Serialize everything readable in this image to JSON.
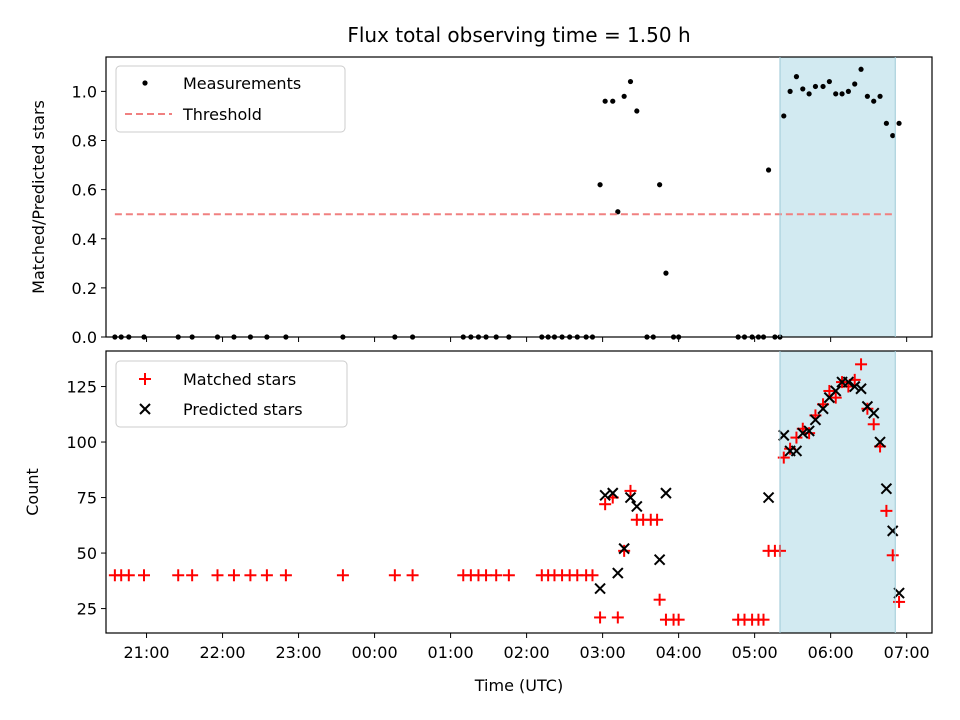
{
  "chart_data": [
    {
      "type": "scatter",
      "title": "Flux total observing time = 1.50 h",
      "xlabel": "",
      "ylabel": "Matched/Predicted stars",
      "xlim": [
        "20:28",
        "07:20"
      ],
      "ylim": [
        0,
        1.14
      ],
      "y_ticks": [
        "0.0",
        "0.2",
        "0.4",
        "0.6",
        "0.8",
        "1.0"
      ],
      "shaded_region": {
        "x_start": "05:20",
        "x_end": "06:51",
        "color": "#add8e6"
      },
      "legend_placement": "top-left",
      "series": [
        {
          "name": "Measurements",
          "marker": "dot",
          "color": "#000000",
          "points": [
            [
              "20:35",
              0
            ],
            [
              "20:40",
              0
            ],
            [
              "20:46",
              0
            ],
            [
              "20:58",
              0
            ],
            [
              "21:25",
              0
            ],
            [
              "21:36",
              0
            ],
            [
              "21:56",
              0
            ],
            [
              "22:09",
              0
            ],
            [
              "22:22",
              0
            ],
            [
              "22:35",
              0
            ],
            [
              "22:50",
              0
            ],
            [
              "23:35",
              0
            ],
            [
              "00:16",
              0
            ],
            [
              "00:30",
              0
            ],
            [
              "01:10",
              0
            ],
            [
              "01:16",
              0
            ],
            [
              "01:22",
              0
            ],
            [
              "01:28",
              0
            ],
            [
              "01:36",
              0
            ],
            [
              "01:46",
              0
            ],
            [
              "02:12",
              0
            ],
            [
              "02:17",
              0
            ],
            [
              "02:22",
              0
            ],
            [
              "02:28",
              0
            ],
            [
              "02:34",
              0
            ],
            [
              "02:40",
              0
            ],
            [
              "02:47",
              0
            ],
            [
              "02:52",
              0
            ],
            [
              "02:58",
              0.62
            ],
            [
              "03:02",
              0.96
            ],
            [
              "03:08",
              0.96
            ],
            [
              "03:12",
              0.51
            ],
            [
              "03:17",
              0.98
            ],
            [
              "03:22",
              1.04
            ],
            [
              "03:27",
              0.92
            ],
            [
              "03:35",
              0
            ],
            [
              "03:40",
              0
            ],
            [
              "03:45",
              0.62
            ],
            [
              "03:50",
              0.26
            ],
            [
              "03:56",
              0
            ],
            [
              "04:00",
              0
            ],
            [
              "04:47",
              0
            ],
            [
              "04:52",
              0
            ],
            [
              "04:58",
              0
            ],
            [
              "05:03",
              0
            ],
            [
              "05:07",
              0
            ],
            [
              "05:11",
              0.68
            ],
            [
              "05:16",
              0
            ],
            [
              "05:20",
              0
            ],
            [
              "05:23",
              0.9
            ],
            [
              "05:28",
              1.0
            ],
            [
              "05:33",
              1.06
            ],
            [
              "05:38",
              1.01
            ],
            [
              "05:43",
              0.99
            ],
            [
              "05:48",
              1.02
            ],
            [
              "05:54",
              1.02
            ],
            [
              "05:59",
              1.04
            ],
            [
              "06:04",
              0.99
            ],
            [
              "06:09",
              0.99
            ],
            [
              "06:14",
              1.0
            ],
            [
              "06:19",
              1.03
            ],
            [
              "06:24",
              1.09
            ],
            [
              "06:29",
              0.98
            ],
            [
              "06:34",
              0.96
            ],
            [
              "06:39",
              0.98
            ],
            [
              "06:44",
              0.87
            ],
            [
              "06:49",
              0.82
            ],
            [
              "06:54",
              0.87
            ]
          ]
        },
        {
          "name": "Threshold",
          "style": "dashed",
          "color": "#f08080",
          "points": [
            [
              "20:35",
              0.5
            ],
            [
              "06:51",
              0.5
            ]
          ]
        }
      ]
    },
    {
      "type": "scatter",
      "title": "",
      "xlabel": "Time (UTC)",
      "ylabel": "Count",
      "xlim": [
        "20:28",
        "07:20"
      ],
      "ylim": [
        14,
        141
      ],
      "y_ticks": [
        "25",
        "50",
        "75",
        "100",
        "125"
      ],
      "x_ticks": [
        "21:00",
        "22:00",
        "23:00",
        "00:00",
        "01:00",
        "02:00",
        "03:00",
        "04:00",
        "05:00",
        "06:00",
        "07:00"
      ],
      "shaded_region": {
        "x_start": "05:20",
        "x_end": "06:51",
        "color": "#add8e6"
      },
      "legend_placement": "top-left",
      "series": [
        {
          "name": "Matched stars",
          "marker": "plus",
          "color": "#ff0000",
          "points": [
            [
              "20:35",
              40
            ],
            [
              "20:40",
              40
            ],
            [
              "20:46",
              40
            ],
            [
              "20:58",
              40
            ],
            [
              "21:25",
              40
            ],
            [
              "21:36",
              40
            ],
            [
              "21:56",
              40
            ],
            [
              "22:09",
              40
            ],
            [
              "22:22",
              40
            ],
            [
              "22:35",
              40
            ],
            [
              "22:50",
              40
            ],
            [
              "23:35",
              40
            ],
            [
              "00:16",
              40
            ],
            [
              "00:30",
              40
            ],
            [
              "01:10",
              40
            ],
            [
              "01:16",
              40
            ],
            [
              "01:22",
              40
            ],
            [
              "01:28",
              40
            ],
            [
              "01:36",
              40
            ],
            [
              "01:46",
              40
            ],
            [
              "02:12",
              40
            ],
            [
              "02:17",
              40
            ],
            [
              "02:22",
              40
            ],
            [
              "02:28",
              40
            ],
            [
              "02:34",
              40
            ],
            [
              "02:40",
              40
            ],
            [
              "02:47",
              40
            ],
            [
              "02:52",
              40
            ],
            [
              "02:58",
              21
            ],
            [
              "03:02",
              72
            ],
            [
              "03:08",
              75
            ],
            [
              "03:12",
              21
            ],
            [
              "03:17",
              51
            ],
            [
              "03:22",
              78
            ],
            [
              "03:27",
              65
            ],
            [
              "03:32",
              65
            ],
            [
              "03:38",
              65
            ],
            [
              "03:43",
              65
            ],
            [
              "03:45",
              29
            ],
            [
              "03:50",
              20
            ],
            [
              "03:56",
              20
            ],
            [
              "04:00",
              20
            ],
            [
              "04:47",
              20
            ],
            [
              "04:52",
              20
            ],
            [
              "04:58",
              20
            ],
            [
              "05:03",
              20
            ],
            [
              "05:07",
              20
            ],
            [
              "05:11",
              51
            ],
            [
              "05:16",
              51
            ],
            [
              "05:20",
              51
            ],
            [
              "05:23",
              93
            ],
            [
              "05:28",
              97
            ],
            [
              "05:33",
              102
            ],
            [
              "05:38",
              106
            ],
            [
              "05:43",
              104
            ],
            [
              "05:48",
              112
            ],
            [
              "05:54",
              117
            ],
            [
              "05:59",
              123
            ],
            [
              "06:04",
              120
            ],
            [
              "06:09",
              127
            ],
            [
              "06:14",
              125
            ],
            [
              "06:19",
              128
            ],
            [
              "06:24",
              135
            ],
            [
              "06:29",
              115
            ],
            [
              "06:34",
              108
            ],
            [
              "06:39",
              98
            ],
            [
              "06:44",
              69
            ],
            [
              "06:49",
              49
            ],
            [
              "06:54",
              28
            ]
          ]
        },
        {
          "name": "Predicted stars",
          "marker": "x",
          "color": "#000000",
          "points": [
            [
              "02:58",
              34
            ],
            [
              "03:02",
              76
            ],
            [
              "03:08",
              77
            ],
            [
              "03:12",
              41
            ],
            [
              "03:17",
              52
            ],
            [
              "03:22",
              75
            ],
            [
              "03:27",
              71
            ],
            [
              "03:45",
              47
            ],
            [
              "03:50",
              77
            ],
            [
              "05:11",
              75
            ],
            [
              "05:23",
              103
            ],
            [
              "05:28",
              96
            ],
            [
              "05:33",
              96
            ],
            [
              "05:38",
              104
            ],
            [
              "05:43",
              105
            ],
            [
              "05:48",
              110
            ],
            [
              "05:54",
              115
            ],
            [
              "05:59",
              120
            ],
            [
              "06:04",
              123
            ],
            [
              "06:09",
              127
            ],
            [
              "06:14",
              127
            ],
            [
              "06:19",
              125
            ],
            [
              "06:24",
              124
            ],
            [
              "06:29",
              116
            ],
            [
              "06:34",
              113
            ],
            [
              "06:39",
              100
            ],
            [
              "06:44",
              79
            ],
            [
              "06:49",
              60
            ],
            [
              "06:54",
              32
            ]
          ]
        }
      ]
    }
  ]
}
